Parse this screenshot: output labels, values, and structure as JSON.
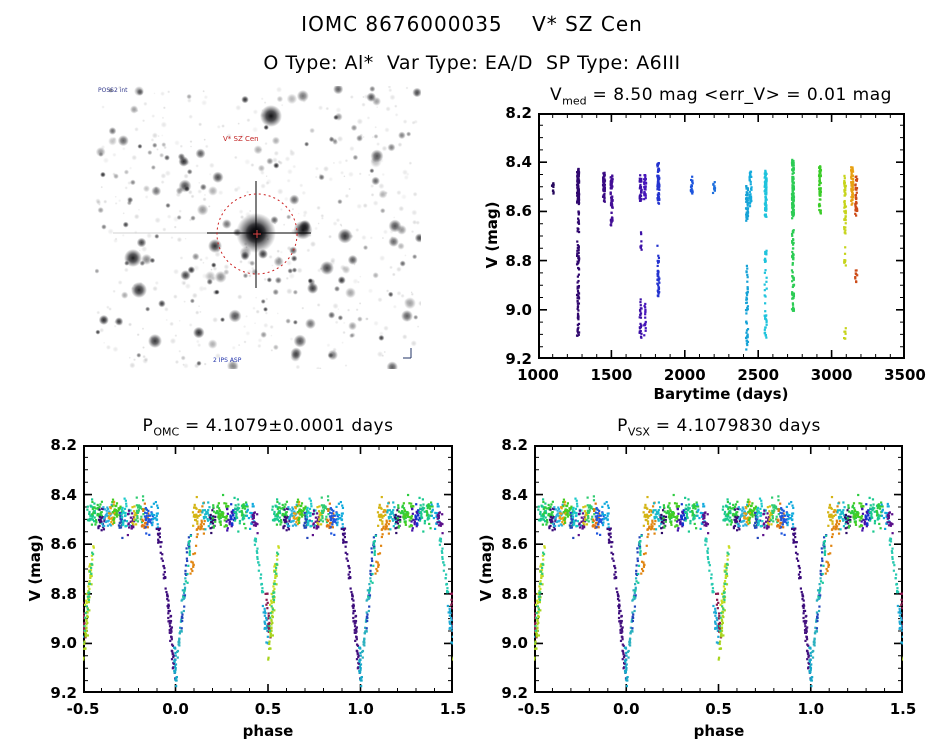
{
  "header": {
    "title": "IOMC 8676000035    V* SZ Cen",
    "subtitle": "O Type: Al*  Var Type: EA/D  SP Type: A6III",
    "omc_id": "8676000035",
    "star_name": "V* SZ Cen",
    "o_type": "Al*",
    "var_type": "EA/D",
    "sp_type": "A6III"
  },
  "finder": {
    "star_label": "V* SZ Cen",
    "survey_label": "POSS2 int",
    "footer_label": "2 IPS ASP",
    "circle_color": "#cc2222",
    "label_color": "#c22222",
    "corner_text_color": "#2233aa"
  },
  "chart_data": [
    {
      "id": "timeseries",
      "type": "scatter",
      "title": {
        "base": "V",
        "sub": "med",
        "rest": " = 8.50 mag <err_V> = 0.01 mag"
      },
      "v_median_mag": 8.5,
      "err_v_mag": 0.01,
      "xlabel": "Barytime (days)",
      "ylabel": "V (mag)",
      "xlim": [
        1000,
        3500
      ],
      "ylim_top": 8.2,
      "ylim_bottom": 9.2,
      "xticks": [
        1000,
        1500,
        2000,
        2500,
        3000,
        3500
      ],
      "yticks": [
        8.2,
        8.4,
        8.6,
        8.8,
        9.0,
        9.2
      ],
      "xminor": 100,
      "yminor": 0.05,
      "clusters": [
        {
          "t": 1102,
          "color": "#26085c",
          "segments": [
            [
              8.49,
              8.53,
              10
            ]
          ]
        },
        {
          "t": 1273,
          "color": "#30076e",
          "segments": [
            [
              8.43,
              8.56,
              110
            ],
            [
              8.6,
              9.11,
              85
            ]
          ]
        },
        {
          "t": 1450,
          "color": "#3b0b84",
          "segments": [
            [
              8.45,
              8.56,
              55
            ]
          ]
        },
        {
          "t": 1502,
          "color": "#430f96",
          "segments": [
            [
              8.45,
              8.66,
              65
            ]
          ]
        },
        {
          "t": 1699,
          "color": "#3c10a6",
          "segments": [
            [
              8.46,
              8.56,
              35
            ],
            [
              8.69,
              8.75,
              8
            ],
            [
              8.95,
              9.11,
              26
            ]
          ]
        },
        {
          "t": 1729,
          "color": "#4615bb",
          "segments": [
            [
              8.45,
              8.55,
              28
            ],
            [
              8.97,
              9.1,
              16
            ]
          ]
        },
        {
          "t": 1820,
          "color": "#2433cf",
          "segments": [
            [
              8.4,
              8.56,
              65
            ],
            [
              8.74,
              8.94,
              38
            ]
          ]
        },
        {
          "t": 2047,
          "color": "#1d55dd",
          "segments": [
            [
              8.47,
              8.53,
              22
            ]
          ]
        },
        {
          "t": 2199,
          "color": "#1d6fdd",
          "segments": [
            [
              8.48,
              8.52,
              10
            ]
          ]
        },
        {
          "t": 2424,
          "color": "#16a2d6",
          "segments": [
            [
              8.49,
              8.63,
              48
            ],
            [
              8.82,
              9.02,
              26
            ],
            [
              9.04,
              9.16,
              18
            ]
          ]
        },
        {
          "t": 2448,
          "color": "#14abdd",
          "segments": [
            [
              8.44,
              8.58,
              36
            ]
          ]
        },
        {
          "t": 2551,
          "color": "#1fc3dc",
          "segments": [
            [
              8.44,
              8.63,
              75
            ],
            [
              8.76,
              9.12,
              42
            ]
          ]
        },
        {
          "t": 2737,
          "color": "#2dcc55",
          "segments": [
            [
              8.39,
              8.62,
              115
            ],
            [
              8.67,
              9.01,
              62
            ]
          ]
        },
        {
          "t": 2921,
          "color": "#3bcc28",
          "segments": [
            [
              8.42,
              8.6,
              60
            ]
          ]
        },
        {
          "t": 3091,
          "color": "#c6d41b",
          "segments": [
            [
              8.45,
              8.7,
              45
            ],
            [
              8.74,
              8.82,
              9
            ],
            [
              9.07,
              9.12,
              7
            ]
          ]
        },
        {
          "t": 3140,
          "color": "#e7a011",
          "segments": [
            [
              8.42,
              8.57,
              60
            ]
          ]
        },
        {
          "t": 3168,
          "color": "#cc4a16",
          "segments": [
            [
              8.46,
              8.62,
              36
            ],
            [
              8.83,
              8.89,
              9
            ]
          ]
        }
      ]
    },
    {
      "id": "phase_omc",
      "type": "scatter",
      "title": {
        "base": "P",
        "sub": "OMC",
        "rest": " = 4.1079±0.0001 days"
      },
      "period_days": "4.1079±0.0001",
      "xlabel": "phase",
      "ylabel": "V (mag)",
      "xlim": [
        -0.5,
        1.5
      ],
      "ylim_top": 8.2,
      "ylim_bottom": 9.2,
      "xticks": [
        -0.5,
        0.0,
        0.5,
        1.0,
        1.5
      ],
      "yticks": [
        8.2,
        8.4,
        8.6,
        8.8,
        9.0,
        9.2
      ],
      "xminor": 0.1,
      "yminor": 0.05,
      "model": {
        "baseline_mag": 8.49,
        "band_sigma": 0.028,
        "primary_min_mag": 9.15,
        "secondary_min_mag": 9.05,
        "clumps": [
          {
            "p": -0.455,
            "w": 0.022,
            "n": 30,
            "off": -0.012,
            "color": "#19c98f"
          },
          {
            "p": -0.425,
            "w": 0.028,
            "n": 34,
            "off": -0.018,
            "color": "#2ecc40"
          },
          {
            "p": -0.4,
            "w": 0.018,
            "n": 22,
            "off": 0.012,
            "color": "#3a0a7a"
          },
          {
            "p": -0.37,
            "w": 0.026,
            "n": 30,
            "off": 0.0,
            "color": "#2bb0dd"
          },
          {
            "p": -0.345,
            "w": 0.018,
            "n": 18,
            "off": -0.01,
            "color": "#e8a012"
          },
          {
            "p": -0.315,
            "w": 0.028,
            "n": 34,
            "off": -0.02,
            "color": "#44cc22"
          },
          {
            "p": -0.29,
            "w": 0.018,
            "n": 18,
            "off": 0.015,
            "color": "#2244bb"
          },
          {
            "p": -0.265,
            "w": 0.026,
            "n": 28,
            "off": -0.005,
            "color": "#19c9c9"
          },
          {
            "p": -0.24,
            "w": 0.018,
            "n": 20,
            "off": 0.01,
            "color": "#5a0f8a"
          },
          {
            "p": -0.215,
            "w": 0.018,
            "n": 16,
            "off": -0.015,
            "color": "#d4c414"
          },
          {
            "p": -0.19,
            "w": 0.026,
            "n": 28,
            "off": -0.018,
            "color": "#2ecc70"
          },
          {
            "p": -0.165,
            "w": 0.018,
            "n": 18,
            "off": 0.012,
            "color": "#e07711"
          },
          {
            "p": -0.14,
            "w": 0.026,
            "n": 28,
            "off": 0.005,
            "color": "#1e55dd"
          },
          {
            "p": -0.112,
            "w": 0.018,
            "n": 22,
            "off": 0.0,
            "color": "#11aadd"
          },
          {
            "p": 0.115,
            "w": 0.022,
            "n": 24,
            "off": -0.01,
            "color": "#d4b414"
          },
          {
            "p": 0.14,
            "w": 0.018,
            "n": 16,
            "off": 0.01,
            "color": "#e08511"
          },
          {
            "p": 0.17,
            "w": 0.026,
            "n": 26,
            "off": -0.005,
            "color": "#19b9c9"
          },
          {
            "p": 0.2,
            "w": 0.018,
            "n": 18,
            "off": 0.012,
            "color": "#2d0a66"
          },
          {
            "p": 0.23,
            "w": 0.028,
            "n": 30,
            "off": -0.02,
            "color": "#2ecc40"
          },
          {
            "p": 0.26,
            "w": 0.028,
            "n": 28,
            "off": -0.015,
            "color": "#44cc22"
          },
          {
            "p": 0.29,
            "w": 0.018,
            "n": 16,
            "off": 0.01,
            "color": "#4411aa"
          },
          {
            "p": 0.315,
            "w": 0.018,
            "n": 20,
            "off": 0.008,
            "color": "#1133cc"
          },
          {
            "p": 0.345,
            "w": 0.026,
            "n": 28,
            "off": -0.012,
            "color": "#19c98f"
          },
          {
            "p": 0.375,
            "w": 0.018,
            "n": 18,
            "off": -0.018,
            "color": "#2ecc40"
          },
          {
            "p": 0.405,
            "w": 0.022,
            "n": 22,
            "off": 0.0,
            "color": "#11aadd"
          },
          {
            "p": 0.432,
            "w": 0.016,
            "n": 16,
            "off": 0.01,
            "color": "#5a0f8a"
          }
        ],
        "branches": [
          {
            "p0": -0.095,
            "p1": -0.035,
            "v0": 8.53,
            "v1": 8.88,
            "n": 42,
            "color": "#3a0a7a"
          },
          {
            "p0": -0.035,
            "p1": -0.002,
            "v0": 8.88,
            "v1": 9.14,
            "n": 40,
            "color": "#45127f"
          },
          {
            "p0": -0.004,
            "p1": 0.004,
            "v0": 9.02,
            "v1": 9.16,
            "n": 22,
            "color": "#17a8c9"
          },
          {
            "p0": 0.004,
            "p1": 0.05,
            "v0": 9.12,
            "v1": 8.75,
            "n": 34,
            "color": "#2bb0bf"
          },
          {
            "p0": 0.03,
            "p1": 0.075,
            "v0": 8.95,
            "v1": 8.56,
            "n": 24,
            "color": "#2244bb"
          },
          {
            "p0": 0.05,
            "p1": 0.08,
            "v0": 8.8,
            "v1": 8.58,
            "n": 14,
            "color": "#19c9a0"
          },
          {
            "p0": 0.085,
            "p1": 0.125,
            "v0": 8.72,
            "v1": 8.53,
            "n": 16,
            "color": "#e08511"
          },
          {
            "p0": 0.43,
            "p1": 0.475,
            "v0": 8.56,
            "v1": 8.83,
            "n": 24,
            "color": "#27c9b0"
          },
          {
            "p0": 0.475,
            "p1": 0.505,
            "v0": 8.83,
            "v1": 9.04,
            "n": 22,
            "color": "#1daad4"
          },
          {
            "p0": 0.492,
            "p1": 0.508,
            "v0": 8.8,
            "v1": 8.96,
            "n": 20,
            "color": "#8a1a50"
          },
          {
            "p0": 0.5,
            "p1": 0.545,
            "v0": 9.06,
            "v1": 8.72,
            "n": 34,
            "color": "#a8d41c"
          },
          {
            "p0": 0.515,
            "p1": 0.565,
            "v0": 8.85,
            "v1": 8.56,
            "n": 26,
            "color": "#cadd22"
          },
          {
            "p0": 0.51,
            "p1": 0.56,
            "v0": 8.95,
            "v1": 8.6,
            "n": 20,
            "color": "#2ecc80"
          }
        ]
      }
    },
    {
      "id": "phase_vsx",
      "type": "scatter",
      "title": {
        "base": "P",
        "sub": "VSX",
        "rest": " = 4.1079830 days"
      },
      "period_days": "4.1079830",
      "xlabel": "phase",
      "ylabel": "V (mag)",
      "xlim": [
        -0.5,
        1.5
      ],
      "ylim_top": 8.2,
      "ylim_bottom": 9.2,
      "xticks": [
        -0.5,
        0.0,
        0.5,
        1.0,
        1.5
      ],
      "yticks": [
        8.2,
        8.4,
        8.6,
        8.8,
        9.0,
        9.2
      ],
      "xminor": 0.1,
      "yminor": 0.05,
      "same_model_as": "phase_omc"
    }
  ]
}
